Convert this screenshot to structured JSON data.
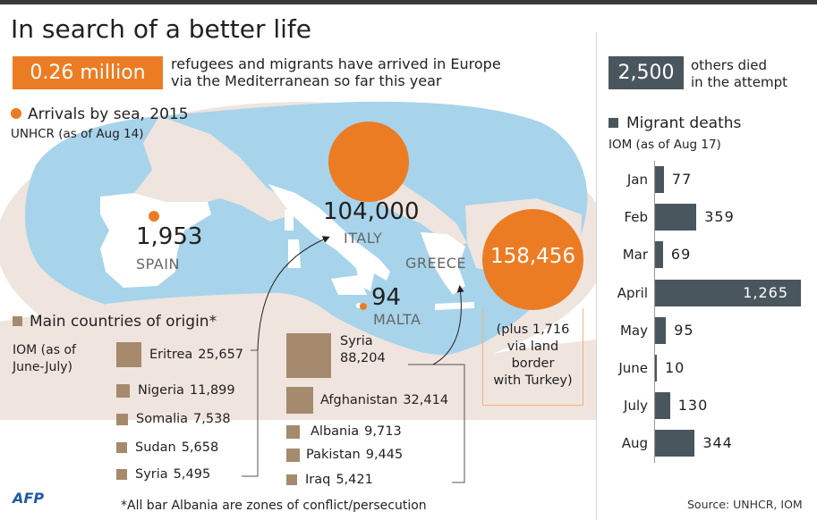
{
  "title": "In search of a better life",
  "headline": {
    "value": "0.26 million",
    "text_line1": "refugees and migrants have arrived in Europe",
    "text_line2": "via the Mediterranean so far this year"
  },
  "deaths_kpi": {
    "value": "2,500",
    "text_line1": "others died",
    "text_line2": "in the attempt"
  },
  "arrivals": {
    "heading": "Arrivals by sea, 2015",
    "source": "UNHCR (as of Aug 14)",
    "spain": {
      "value": "1,953",
      "label": "SPAIN"
    },
    "italy": {
      "value": "104,000",
      "label": "ITALY"
    },
    "malta": {
      "value": "94",
      "label": "MALTA"
    },
    "greece": {
      "value": "158,456",
      "label": "GREECE",
      "note1": "(plus 1,716",
      "note2": "via land",
      "note3": "border",
      "note4": "with Turkey)"
    }
  },
  "origins": {
    "heading": "Main countries of origin*",
    "source_line1": "IOM (as of",
    "source_line2": "June-July)",
    "italy_route": [
      {
        "country": "Eritrea",
        "count": "25,657"
      },
      {
        "country": "Nigeria",
        "count": "11,899"
      },
      {
        "country": "Somalia",
        "count": "7,538"
      },
      {
        "country": "Sudan",
        "count": "5,658"
      },
      {
        "country": "Syria",
        "count": "5,495"
      }
    ],
    "greece_route": [
      {
        "country": "Syria",
        "count": "88,204"
      },
      {
        "country": "Afghanistan",
        "count": "32,414"
      },
      {
        "country": "Albania",
        "count": "9,713"
      },
      {
        "country": "Pakistan",
        "count": "9,445"
      },
      {
        "country": "Iraq",
        "count": "5,421"
      }
    ]
  },
  "footnote": "*All bar Albania are zones of conflict/persecution",
  "logo": "AFP",
  "source": "Source: UNHCR, IOM",
  "colors": {
    "accent": "#ec7c23",
    "dark": "#4a565e",
    "sea": "#a7d4ea",
    "land": "#efe4de",
    "origin": "#a58a6e"
  },
  "chart_data": {
    "type": "bar",
    "title": "Migrant deaths",
    "subtitle": "IOM (as of Aug 17)",
    "orientation": "horizontal",
    "categories": [
      "Jan",
      "Feb",
      "Mar",
      "April",
      "May",
      "June",
      "July",
      "Aug"
    ],
    "values": [
      77,
      359,
      69,
      1265,
      95,
      10,
      130,
      344
    ],
    "labels": [
      "77",
      "359",
      "69",
      "1,265",
      "95",
      "10",
      "130",
      "344"
    ]
  }
}
